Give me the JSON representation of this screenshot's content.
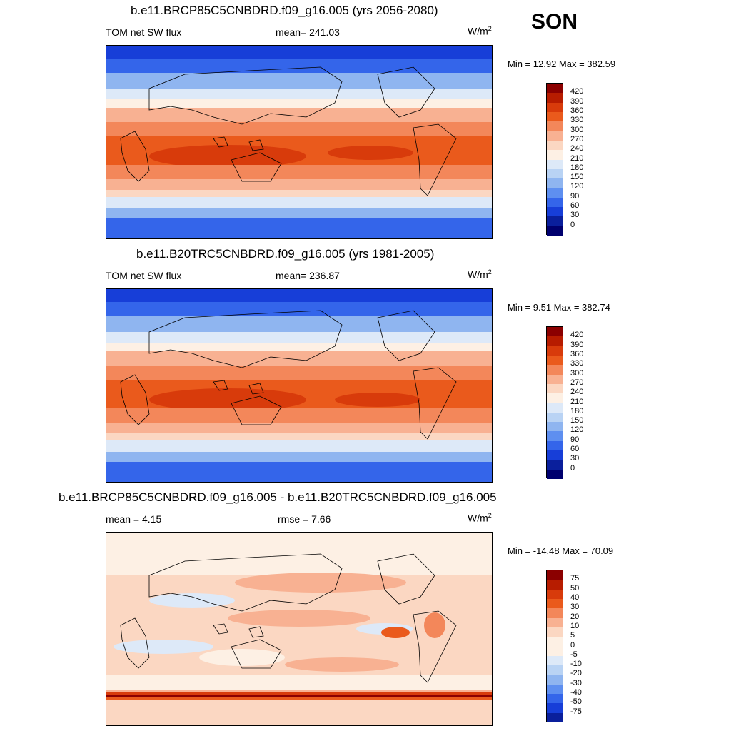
{
  "season": "SON",
  "panels": [
    {
      "title": "b.e11.BRCP85C5CNBDRD.f09_g16.005 (yrs 2056-2080)",
      "left_label": "TOM net SW flux",
      "center_label": "mean= 241.03",
      "units": "W/m",
      "units_sup": "2",
      "minmax": "Min =  12.92 Max = 382.59",
      "colorbar": [
        "420",
        "390",
        "360",
        "330",
        "300",
        "270",
        "240",
        "210",
        "180",
        "150",
        "120",
        "90",
        "60",
        "30",
        "0"
      ]
    },
    {
      "title": "b.e11.B20TRC5CNBDRD.f09_g16.005 (yrs 1981-2005)",
      "left_label": "TOM net SW flux",
      "center_label": "mean= 236.87",
      "units": "W/m",
      "units_sup": "2",
      "minmax": "Min =   9.51 Max = 382.74",
      "colorbar": [
        "420",
        "390",
        "360",
        "330",
        "300",
        "270",
        "240",
        "210",
        "180",
        "150",
        "120",
        "90",
        "60",
        "30",
        "0"
      ]
    },
    {
      "title": "b.e11.BRCP85C5CNBDRD.f09_g16.005 - b.e11.B20TRC5CNBDRD.f09_g16.005",
      "left_label": "mean =   4.15",
      "center_label": "rmse =   7.66",
      "units": "W/m",
      "units_sup": "2",
      "minmax": "Min = -14.48 Max =  70.09",
      "colorbar": [
        "75",
        "50",
        "40",
        "30",
        "20",
        "10",
        "5",
        "0",
        "-5",
        "-10",
        "-20",
        "-30",
        "-40",
        "-50",
        "-75"
      ]
    }
  ],
  "palette": [
    "#8b0000",
    "#b71c00",
    "#d83b0b",
    "#ea5a1c",
    "#f3875a",
    "#f8b192",
    "#fbd7c2",
    "#fdf0e4",
    "#dde9f8",
    "#b9d3f4",
    "#8fb5f0",
    "#5e8ff0",
    "#3465ea",
    "#173ed8",
    "#0a1f9c",
    "#00006e"
  ],
  "diff_palette": [
    "#8b0000",
    "#b71c00",
    "#d83b0b",
    "#ea5a1c",
    "#f3875a",
    "#f8b192",
    "#fbd7c2",
    "#fdf0e4",
    "#fdf0e4",
    "#dde9f8",
    "#b9d3f4",
    "#8fb5f0",
    "#5e8ff0",
    "#3465ea",
    "#173ed8",
    "#0a1f9c"
  ]
}
